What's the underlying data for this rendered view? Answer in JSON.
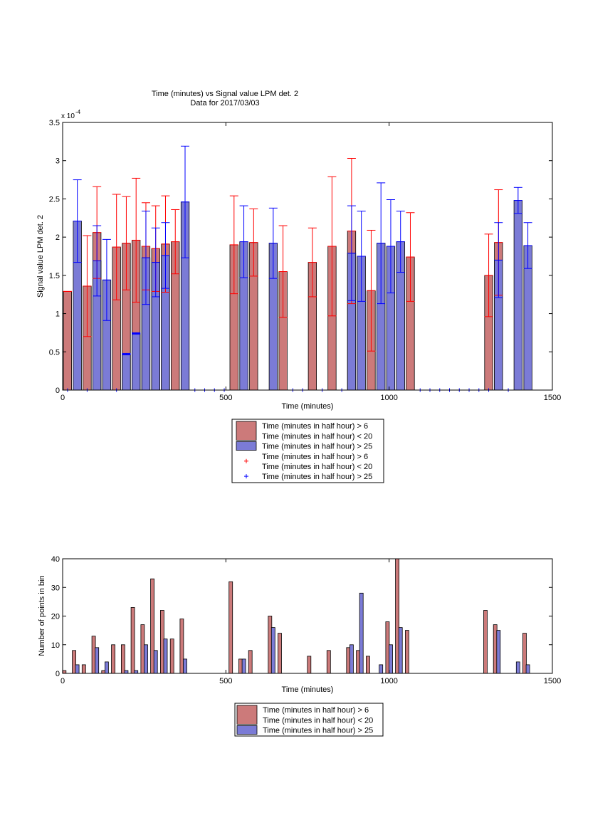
{
  "chart_data": [
    {
      "type": "bar",
      "title": "Time (minutes) vs Signal value LPM det. 2",
      "subtitle": "Data for 2017/03/03",
      "xlabel": "Time (minutes)",
      "ylabel": "Signal value LPM det. 2",
      "y_exponent_label": "x 10",
      "y_exponent": "-4",
      "xlim": [
        0,
        1500
      ],
      "ylim": [
        0,
        3.5
      ],
      "x_ticks": [
        0,
        500,
        1000,
        1500
      ],
      "y_ticks": [
        0,
        0.5,
        1,
        1.5,
        2,
        2.5,
        3,
        3.5
      ],
      "grid": false,
      "legend_position": "below",
      "legend": [
        {
          "label": "Time (minutes in half hour) > 6",
          "color": "#cc7a7a",
          "marker": "bar"
        },
        {
          "label": "Time (minutes in half hour) < 20",
          "color": "#cc7a7a",
          "marker": "bar"
        },
        {
          "label": "Time (minutes in half hour) > 25",
          "color": "#7b7bd6",
          "marker": "bar"
        },
        {
          "label": "Time (minutes in half hour) > 6",
          "color": "#ff0000",
          "marker": "plus"
        },
        {
          "label": "Time (minutes in half hour) < 20",
          "color": "#ff0000",
          "marker": "plus"
        },
        {
          "label": "Time (minutes in half hour) > 25",
          "color": "#0000ff",
          "marker": "plus"
        }
      ],
      "series": [
        {
          "color": "#cc7a7a",
          "err_color": "#ff0000",
          "x": [
            15,
            75,
            105,
            165,
            195,
            225,
            255,
            285,
            315,
            345,
            525,
            585,
            675,
            765,
            825,
            885,
            945,
            1065,
            1305,
            1335
          ],
          "values": [
            1.29,
            1.36,
            2.06,
            1.87,
            1.92,
            1.96,
            1.88,
            1.85,
            1.91,
            1.94,
            1.9,
            1.93,
            1.55,
            1.67,
            1.88,
            2.08,
            1.3,
            1.74,
            1.5,
            1.93
          ],
          "err": [
            0.0,
            0.66,
            0.6,
            0.69,
            0.61,
            0.81,
            0.57,
            0.56,
            0.63,
            0.42,
            0.64,
            0.44,
            0.6,
            0.45,
            0.91,
            0.95,
            0.79,
            0.58,
            0.54,
            0.69
          ]
        },
        {
          "color": "#7b7bd6",
          "err_color": "#0000ff",
          "x": [
            45,
            105,
            135,
            195,
            225,
            255,
            285,
            315,
            375,
            555,
            645,
            885,
            915,
            975,
            1005,
            1035,
            1335,
            1395,
            1425
          ],
          "values": [
            2.21,
            1.69,
            1.44,
            0.47,
            0.74,
            1.73,
            1.67,
            1.76,
            2.46,
            1.94,
            1.92,
            1.79,
            1.75,
            1.92,
            1.88,
            1.94,
            1.7,
            2.48,
            1.89
          ],
          "err": [
            0.54,
            0.46,
            0.53,
            0.01,
            0.01,
            0.61,
            0.45,
            0.43,
            0.73,
            0.47,
            0.46,
            0.62,
            0.59,
            0.79,
            0.61,
            0.4,
            0.49,
            0.17,
            0.3
          ]
        }
      ],
      "markers_at_zero": {
        "color": "#0000ff",
        "x": [
          15,
          75,
          165,
          405,
          435,
          465,
          495,
          705,
          735,
          795,
          855,
          1095,
          1125,
          1155,
          1185,
          1215,
          1245,
          1275,
          1305,
          1365
        ]
      }
    },
    {
      "type": "bar",
      "xlabel": "Time (minutes)",
      "ylabel": "Number of points in bin",
      "xlim": [
        0,
        1500
      ],
      "ylim": [
        0,
        40
      ],
      "x_ticks": [
        0,
        500,
        1000,
        1500
      ],
      "y_ticks": [
        0,
        10,
        20,
        30,
        40
      ],
      "grid": false,
      "legend_position": "below",
      "legend": [
        {
          "label": "Time (minutes in half hour) > 6",
          "color": "#cc7a7a",
          "marker": "bar"
        },
        {
          "label": "Time (minutes in half hour) < 20",
          "color": "#cc7a7a",
          "marker": "bar"
        },
        {
          "label": "Time (minutes in half hour) > 25",
          "color": "#7b7bd6",
          "marker": "bar"
        }
      ],
      "series": [
        {
          "color": "#cc7a7a",
          "x": [
            5,
            35,
            65,
            95,
            125,
            155,
            185,
            215,
            245,
            275,
            305,
            335,
            365,
            515,
            545,
            575,
            635,
            665,
            755,
            815,
            875,
            905,
            935,
            995,
            1025,
            1055,
            1295,
            1325,
            1415
          ],
          "values": [
            1,
            8,
            3,
            13,
            1,
            10,
            10,
            23,
            17,
            33,
            22,
            12,
            19,
            32,
            5,
            8,
            20,
            14,
            6,
            8,
            9,
            8,
            6,
            18,
            40,
            15,
            22,
            17,
            14
          ]
        },
        {
          "color": "#7b7bd6",
          "x": [
            45,
            105,
            135,
            195,
            225,
            255,
            285,
            315,
            375,
            555,
            645,
            885,
            915,
            975,
            1005,
            1035,
            1335,
            1395,
            1425
          ],
          "values": [
            3,
            9,
            4,
            1,
            1,
            10,
            8,
            12,
            5,
            5,
            16,
            10,
            28,
            3,
            10,
            16,
            15,
            4,
            3
          ]
        }
      ]
    }
  ]
}
